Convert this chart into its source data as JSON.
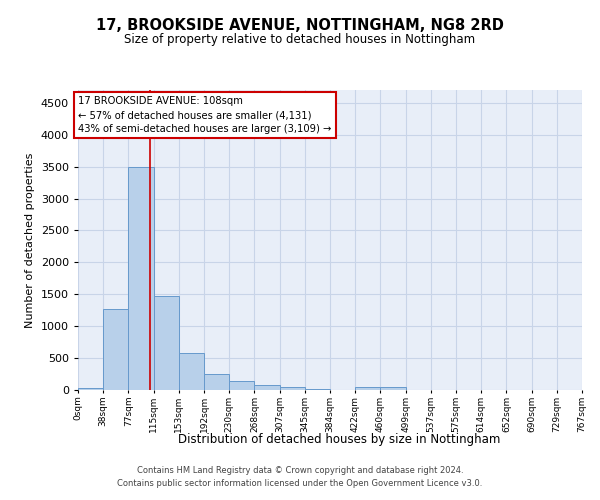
{
  "title": "17, BROOKSIDE AVENUE, NOTTINGHAM, NG8 2RD",
  "subtitle": "Size of property relative to detached houses in Nottingham",
  "xlabel": "Distribution of detached houses by size in Nottingham",
  "ylabel": "Number of detached properties",
  "bin_labels": [
    "0sqm",
    "38sqm",
    "77sqm",
    "115sqm",
    "153sqm",
    "192sqm",
    "230sqm",
    "268sqm",
    "307sqm",
    "345sqm",
    "384sqm",
    "422sqm",
    "460sqm",
    "499sqm",
    "537sqm",
    "575sqm",
    "614sqm",
    "652sqm",
    "690sqm",
    "729sqm",
    "767sqm"
  ],
  "bar_values": [
    30,
    1270,
    3500,
    1480,
    575,
    245,
    140,
    80,
    40,
    20,
    5,
    50,
    40,
    0,
    0,
    0,
    0,
    0,
    0,
    0
  ],
  "bar_color": "#b8d0ea",
  "bar_edge_color": "#6699cc",
  "property_line_x": 108,
  "annotation_line1": "17 BROOKSIDE AVENUE: 108sqm",
  "annotation_line2": "← 57% of detached houses are smaller (4,131)",
  "annotation_line3": "43% of semi-detached houses are larger (3,109) →",
  "annotation_box_color": "#ffffff",
  "annotation_box_edge_color": "#cc0000",
  "ylim": [
    0,
    4700
  ],
  "yticks": [
    0,
    500,
    1000,
    1500,
    2000,
    2500,
    3000,
    3500,
    4000,
    4500
  ],
  "grid_color": "#c8d4e8",
  "background_color": "#e8eef8",
  "footer_line1": "Contains HM Land Registry data © Crown copyright and database right 2024.",
  "footer_line2": "Contains public sector information licensed under the Open Government Licence v3.0."
}
